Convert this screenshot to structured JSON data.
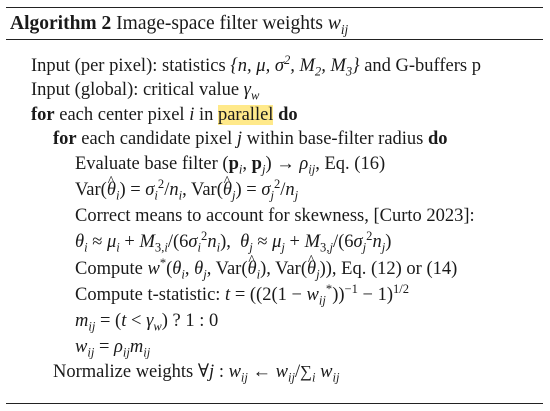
{
  "algorithm": {
    "label": "Algorithm 2",
    "title": "Image-space filter weights",
    "title_var": "w",
    "title_sub": "ij"
  },
  "lines": {
    "l1_text": "Input (per pixel): statistics",
    "l1_set": "{n, μ, σ², M₂, M₃}",
    "l1_rest": "and G-buffers p",
    "l2_text": "Input (global): critical value",
    "l2_var": "γ",
    "l2_sub": "w",
    "l3_kw1": "for",
    "l3_text": "each center pixel",
    "l3_var": "i",
    "l3_in": "in",
    "l3_hl": "parallel",
    "l3_kw2": "do",
    "l4_kw1": "for",
    "l4_text": "each candidate pixel",
    "l4_var": "j",
    "l4_text2": "within base-filter radius",
    "l4_kw2": "do",
    "l5_text": "Evaluate base filter",
    "l5_eq": ", Eq. (16)",
    "l7_text": "Correct means to account for skewness, [Curto 2023]:",
    "l9_text": "Compute",
    "l9_eq": ", Eq. (12) or (14)",
    "l10_text": "Compute t-statistic:",
    "l13_text": "Normalize weights"
  }
}
